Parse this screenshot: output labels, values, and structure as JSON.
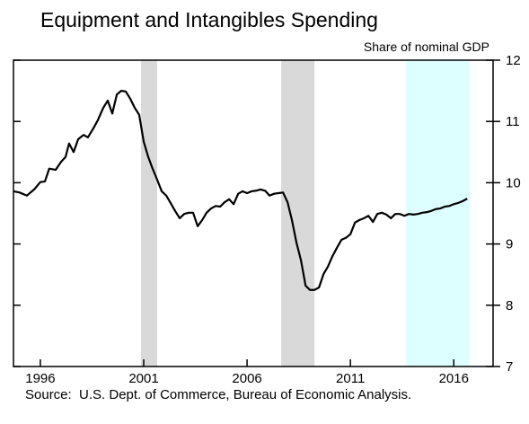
{
  "chart_data": {
    "type": "line",
    "title": "Equipment and Intangibles Spending",
    "y_axis_label": "Share of nominal GDP",
    "source": "Source:  U.S. Dept. of Commerce, Bureau of Economic Analysis.",
    "x": [
      1994.7,
      1995.0,
      1995.35,
      1995.7,
      1996.0,
      1996.22,
      1996.43,
      1996.74,
      1997.0,
      1997.22,
      1997.39,
      1997.61,
      1997.83,
      1998.09,
      1998.3,
      1998.57,
      1998.78,
      1999.04,
      1999.26,
      1999.48,
      1999.7,
      1999.91,
      2000.13,
      2000.35,
      2000.57,
      2000.78,
      2001.0,
      2001.22,
      2001.43,
      2001.65,
      2001.87,
      2002.09,
      2002.3,
      2002.52,
      2002.74,
      2002.96,
      2003.17,
      2003.39,
      2003.61,
      2003.83,
      2004.04,
      2004.26,
      2004.48,
      2004.7,
      2004.91,
      2005.13,
      2005.35,
      2005.57,
      2005.78,
      2006.0,
      2006.22,
      2006.43,
      2006.65,
      2006.87,
      2007.09,
      2007.3,
      2007.52,
      2007.74,
      2007.96,
      2008.17,
      2008.39,
      2008.61,
      2008.83,
      2009.04,
      2009.26,
      2009.48,
      2009.7,
      2009.91,
      2010.13,
      2010.35,
      2010.57,
      2010.78,
      2011.0,
      2011.22,
      2011.43,
      2011.65,
      2011.87,
      2012.09,
      2012.3,
      2012.52,
      2012.74,
      2012.96,
      2013.17,
      2013.39,
      2013.61,
      2013.83,
      2014.04,
      2014.26,
      2014.48,
      2014.7,
      2014.91,
      2015.13,
      2015.35,
      2015.57,
      2015.78,
      2016.0,
      2016.22,
      2016.43,
      2016.65
    ],
    "series": [
      {
        "color": "#000000",
        "values": [
          9.86,
          9.84,
          9.79,
          9.89,
          10.01,
          10.02,
          10.23,
          10.21,
          10.34,
          10.42,
          10.64,
          10.5,
          10.71,
          10.78,
          10.74,
          10.89,
          11.02,
          11.22,
          11.34,
          11.13,
          11.44,
          11.5,
          11.49,
          11.37,
          11.22,
          11.11,
          10.67,
          10.42,
          10.23,
          10.05,
          9.86,
          9.79,
          9.67,
          9.54,
          9.42,
          9.49,
          9.51,
          9.51,
          9.29,
          9.39,
          9.51,
          9.58,
          9.62,
          9.61,
          9.68,
          9.73,
          9.65,
          9.82,
          9.86,
          9.83,
          9.86,
          9.87,
          9.89,
          9.87,
          9.79,
          9.82,
          9.83,
          9.84,
          9.68,
          9.39,
          9.02,
          8.73,
          8.32,
          8.25,
          8.25,
          8.29,
          8.51,
          8.63,
          8.8,
          8.94,
          9.07,
          9.1,
          9.16,
          9.35,
          9.39,
          9.42,
          9.46,
          9.36,
          9.49,
          9.51,
          9.48,
          9.42,
          9.49,
          9.49,
          9.46,
          9.49,
          9.48,
          9.49,
          9.51,
          9.52,
          9.54,
          9.57,
          9.58,
          9.61,
          9.62,
          9.65,
          9.67,
          9.7,
          9.74
        ]
      }
    ],
    "shaded_regions": [
      {
        "range": [
          2000.87,
          2001.65
        ],
        "color": "#d9d9d9"
      },
      {
        "range": [
          2007.65,
          2009.26
        ],
        "color": "#d9d9d9"
      },
      {
        "range": [
          2013.7,
          2016.78
        ],
        "color": "#ddffff"
      }
    ],
    "xlim": [
      1994.7,
      2017.9
    ],
    "xticks": [
      1996,
      2001,
      2006,
      2011,
      2016
    ],
    "ylim": [
      7,
      12
    ],
    "yticks": [
      7,
      8,
      9,
      10,
      11,
      12
    ],
    "y_axis_side": "right"
  }
}
